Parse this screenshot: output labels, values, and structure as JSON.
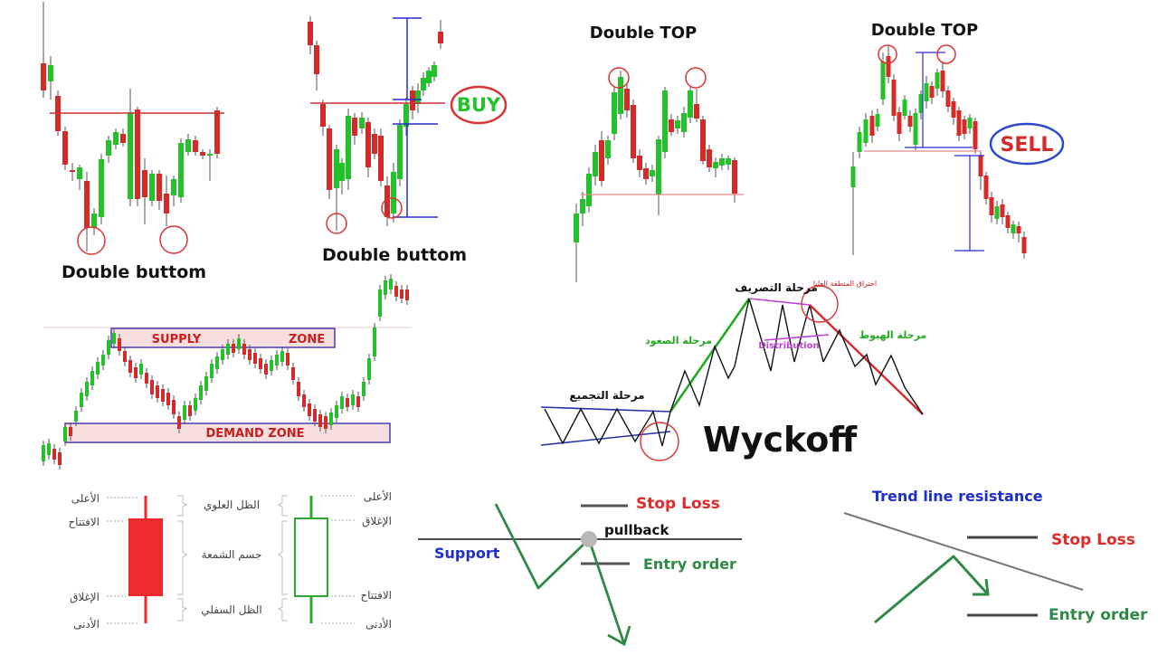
{
  "panels": {
    "double_bottom_1": {
      "caption": "Double buttom"
    },
    "double_bottom_2": {
      "caption": "Double buttom",
      "signal": "BUY"
    },
    "double_top_1": {
      "caption": "Double TOP"
    },
    "double_top_2": {
      "caption": "Double TOP",
      "signal": "SELL"
    },
    "zones": {
      "supply_left": "SUPPLY",
      "supply_right": "ZONE",
      "demand": "DEMAND ZONE"
    },
    "wyckoff": {
      "title": "Wyckoff",
      "accumulation": "مرحلة التجميع",
      "markup": "مرحلة الصعود",
      "distribution_phase": "مرحلة التصريف",
      "upthrust": "اختراق المنطقة العليا",
      "distribution": "Distribution",
      "markdown": "مرحلة الهبوط"
    },
    "candle_anatomy": {
      "red": {
        "high": "الأعلى",
        "open": "الافتتاح",
        "close": "الإغلاق",
        "low": "الأدنى"
      },
      "green": {
        "high": "الأعلى",
        "close": "الإغلاق",
        "open": "الافتتاح",
        "low": "الأدنى"
      },
      "center": {
        "upper_wick": "الظل العلوي",
        "body": "جسم الشمعة",
        "lower_wick": "الظل السفلي"
      }
    },
    "support_trade": {
      "support": "Support",
      "stop_loss": "Stop Loss",
      "pullback": "pullback",
      "entry": "Entry order"
    },
    "trendline_trade": {
      "title": "Trend line resistance",
      "stop_loss": "Stop Loss",
      "entry": "Entry order"
    }
  },
  "colors": {
    "bull": "#22c32a",
    "bear": "#d42a2a",
    "resistance": "#cc3333",
    "measure": "#2b2bd0",
    "zone_fill": "#f6dede",
    "zone_stroke": "#4a3ab5",
    "zone_text": "#c82020",
    "purple": "#c040d8",
    "anatomy_red": "#ee2a2a",
    "anatomy_green": "#2fa82f",
    "trade_green": "#2f8a47",
    "stop_red": "#e02a2a",
    "label_blue": "#1e2ec8"
  }
}
